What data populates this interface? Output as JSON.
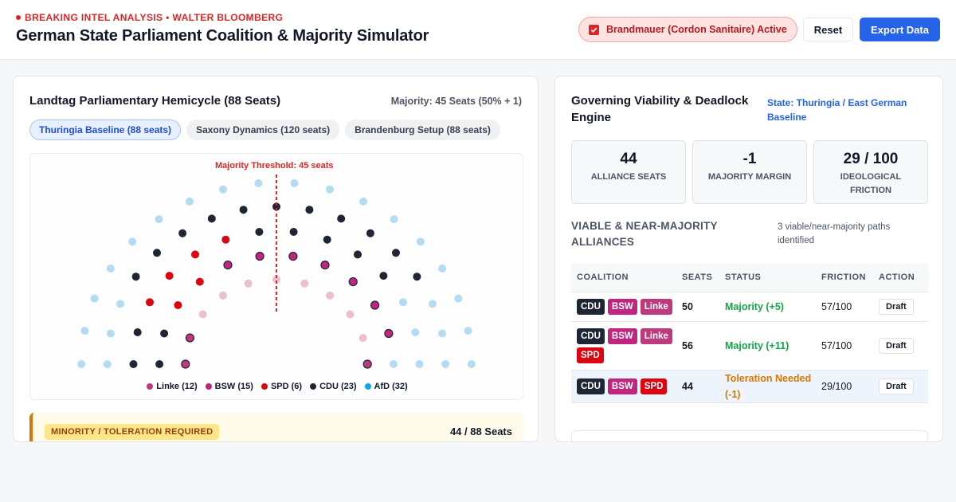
{
  "header": {
    "eyebrow": "BREAKING INTEL ANALYSIS • WALTER BLOOMBERG",
    "title": "German State Parliament Coalition & Majority Simulator",
    "brandmauer_label": "Brandmauer (Cordon Sanitaire) Active",
    "brandmauer_checked": true,
    "reset_label": "Reset",
    "export_label": "Export Data"
  },
  "left": {
    "title": "Landtag Parliamentary Hemicycle (88 Seats)",
    "majority_text": "Majority: 45 Seats (50% + 1)",
    "tabs": [
      {
        "label": "Thuringia Baseline (88 seats)",
        "active": true
      },
      {
        "label": "Saxony Dynamics (120 seats)",
        "active": false
      },
      {
        "label": "Brandenburg Setup (88 seats)",
        "active": false
      }
    ],
    "threshold_label": "Majority Threshold: 45 seats",
    "legend": [
      {
        "label": "Linke (12)",
        "color": "#be3a7e"
      },
      {
        "label": "BSW (15)",
        "color": "#c0267f"
      },
      {
        "label": "SPD (6)",
        "color": "#dc0612"
      },
      {
        "label": "CDU (23)",
        "color": "#1e2533"
      },
      {
        "label": "AfD (32)",
        "color": "#0ea5e9"
      }
    ],
    "tolerance": {
      "badge": "MINORITY / TOLERATION REQUIRED",
      "seats": "44 / 88 Seats"
    }
  },
  "right": {
    "title": "Governing Viability & Deadlock Engine",
    "state": "State: Thuringia / East German Baseline",
    "stats": [
      {
        "value": "44",
        "label": "ALLIANCE SEATS"
      },
      {
        "value": "-1",
        "label": "MAJORITY MARGIN"
      },
      {
        "value": "29 / 100",
        "label": "IDEOLOGICAL FRICTION"
      }
    ],
    "alliances_title": "VIABLE & NEAR-MAJORITY ALLIANCES",
    "alliances_count": "3 viable/near-majority paths identified",
    "table": {
      "headers": [
        "COALITION",
        "SEATS",
        "STATUS",
        "FRICTION",
        "ACTION"
      ],
      "rows": [
        {
          "parties": [
            "CDU",
            "BSW",
            "Linke"
          ],
          "seats": "50",
          "status": "Majority (+5)",
          "status_type": "ok",
          "friction": "57/100",
          "action": "Draft",
          "highlight": false
        },
        {
          "parties": [
            "CDU",
            "BSW",
            "Linke",
            "SPD"
          ],
          "seats": "56",
          "status": "Majority (+11)",
          "status_type": "ok",
          "friction": "57/100",
          "action": "Draft",
          "highlight": false
        },
        {
          "parties": [
            "CDU",
            "BSW",
            "SPD"
          ],
          "seats": "44",
          "status": "Toleration Needed (-1)",
          "status_type": "warn",
          "friction": "29/100",
          "action": "Draft",
          "highlight": true
        }
      ]
    }
  },
  "party_colors": {
    "CDU": "#1e2533",
    "BSW": "#c0267f",
    "Linke": "#be3a7e",
    "SPD": "#dc0612"
  },
  "seat_colors": {
    "cdu": "#1e2533",
    "bsw": "#c0267f",
    "linke": "#be3a7e",
    "spd": "#dc0612",
    "afd_faded": "#b3dcf2",
    "left_faded": "#ebbfd3"
  }
}
